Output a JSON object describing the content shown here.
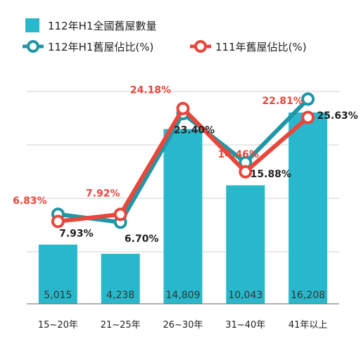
{
  "chart_data": {
    "type": "bar+line",
    "categories": [
      "15~20年",
      "21~25年",
      "26~30年",
      "31~40年",
      "41年以上"
    ],
    "series": [
      {
        "name": "112年H1全國舊屋數量",
        "type": "bar",
        "values": [
          5015,
          4238,
          14809,
          10043,
          16208
        ],
        "labels": [
          "5,015",
          "4,238",
          "14,809",
          "10,043",
          "16,208"
        ],
        "color": "#29b8cb"
      },
      {
        "name": "112年H1舊屋佔比(%)",
        "type": "line",
        "values": [
          7.93,
          6.7,
          23.4,
          15.88,
          25.63
        ],
        "labels": [
          "7.93%",
          "6.70%",
          "23.40%",
          "15.88%",
          "25.63%"
        ],
        "color": "#2196a6",
        "label_color": "#222222"
      },
      {
        "name": "111年舊屋佔比(%)",
        "type": "line",
        "values": [
          6.83,
          7.92,
          24.18,
          14.46,
          22.81
        ],
        "labels": [
          "6.83%",
          "7.92%",
          "24.18%",
          "14.46%",
          "22.81%"
        ],
        "color": "#e8473b",
        "label_color": "#e8473b"
      }
    ],
    "grid": true,
    "legend": "top-left"
  }
}
